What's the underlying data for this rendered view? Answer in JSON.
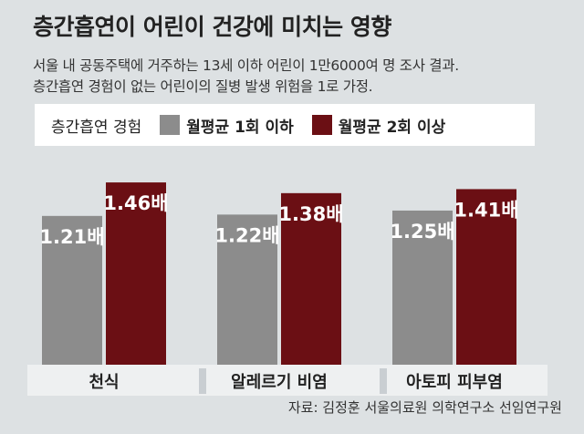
{
  "header": {
    "title": "층간흡연이 어린이 건강에 미치는 영향",
    "subtitle_line1": "서울 내 공동주택에 거주하는 13세 이하 어린이 1만6000여 명 조사 결과.",
    "subtitle_line2": "층간흡연 경험이 없는 어린이의 질병 발생 위험을 1로 가정."
  },
  "legend": {
    "title": "층간흡연 경험",
    "items": [
      {
        "label": "월평균 1회 이하",
        "color": "#8c8c8c"
      },
      {
        "label": "월평균 2회 이상",
        "color": "#6b0f14"
      }
    ]
  },
  "chart_data": {
    "type": "bar",
    "categories": [
      "천식",
      "알레르기 비염",
      "아토피 피부염"
    ],
    "series": [
      {
        "name": "월평균 1회 이하",
        "values": [
          1.21,
          1.22,
          1.25
        ],
        "labels": [
          "1.21배",
          "1.22배",
          "1.25배"
        ],
        "color": "#8c8c8c"
      },
      {
        "name": "월평균 2회 이상",
        "values": [
          1.46,
          1.38,
          1.41
        ],
        "labels": [
          "1.46배",
          "1.38배",
          "1.41배"
        ],
        "color": "#6b0f14"
      }
    ],
    "ylim": [
      0,
      1.5
    ],
    "grid": false
  },
  "source": "자료: 김정훈 서울의료원 의학연구소 선임연구원"
}
